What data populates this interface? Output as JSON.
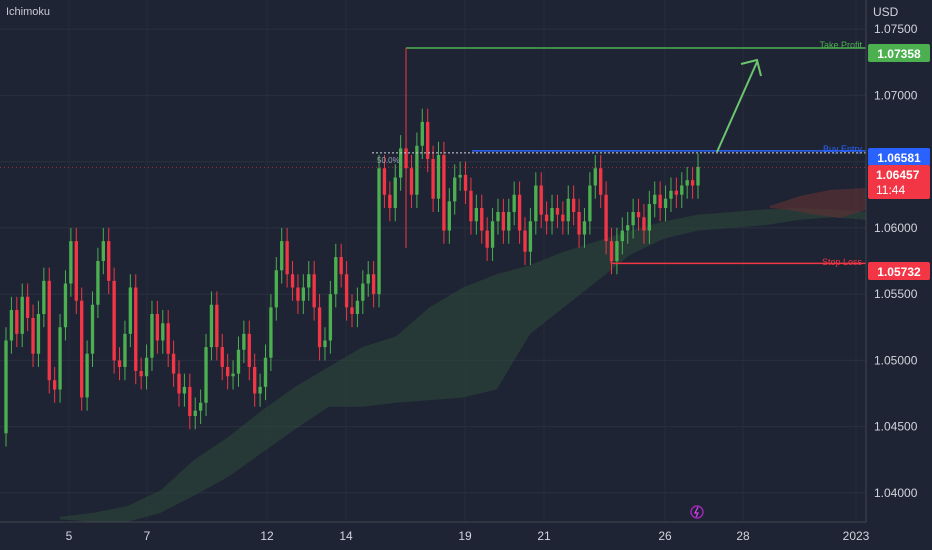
{
  "indicator_name": "Ichimoku",
  "currency": "USD",
  "colors": {
    "background": "#1e2433",
    "up_candle": "#4caf50",
    "down_candle": "#f23645",
    "take_profit": "#4caf50",
    "buy_line": "#2962ff",
    "stop_loss": "#f23645",
    "current_price": "#f23645",
    "cloud_bull": "#2e4a3a",
    "cloud_bear": "#5a3035"
  },
  "levels": {
    "take_profit": {
      "label": "Take Profit",
      "value": "1.07358"
    },
    "buy_entry": {
      "label": "Buy Entry",
      "value": "1.06581"
    },
    "stop_loss": {
      "label": "Stop Loss",
      "value": "1.05732"
    },
    "current": {
      "value": "1.06457",
      "countdown": "11:44"
    },
    "fib_label": "50.0%"
  },
  "chart_data": {
    "type": "candlestick",
    "y_axis": {
      "unit": "USD",
      "ticks": [
        "1.07500",
        "1.07000",
        "1.06500",
        "1.06000",
        "1.05500",
        "1.05000",
        "1.04500",
        "1.04000"
      ],
      "range": [
        1.0378,
        1.0772
      ]
    },
    "x_axis": {
      "ticks": [
        "5",
        "7",
        "12",
        "14",
        "19",
        "21",
        "26",
        "28",
        "2023"
      ]
    },
    "candles": [
      [
        1.0445,
        1.0515
      ],
      [
        1.0515,
        1.0538
      ],
      [
        1.0538,
        1.052
      ],
      [
        1.052,
        1.0548
      ],
      [
        1.0548,
        1.0532
      ],
      [
        1.0532,
        1.0505
      ],
      [
        1.0505,
        1.0535
      ],
      [
        1.0535,
        1.056
      ],
      [
        1.056,
        1.0485
      ],
      [
        1.0485,
        1.0478
      ],
      [
        1.0478,
        1.0525
      ],
      [
        1.0525,
        1.0558
      ],
      [
        1.0558,
        1.059
      ],
      [
        1.059,
        1.0545
      ],
      [
        1.0545,
        1.0472
      ],
      [
        1.0472,
        1.0505
      ],
      [
        1.0505,
        1.0542
      ],
      [
        1.0542,
        1.0575
      ],
      [
        1.0575,
        1.059
      ],
      [
        1.059,
        1.056
      ],
      [
        1.056,
        1.05
      ],
      [
        1.05,
        1.0495
      ],
      [
        1.0495,
        1.052
      ],
      [
        1.052,
        1.0555
      ],
      [
        1.0555,
        1.0492
      ],
      [
        1.0492,
        1.0488
      ],
      [
        1.0488,
        1.0502
      ],
      [
        1.0502,
        1.0535
      ],
      [
        1.0535,
        1.0515
      ],
      [
        1.0515,
        1.0528
      ],
      [
        1.0528,
        1.0505
      ],
      [
        1.0505,
        1.049
      ],
      [
        1.049,
        1.0475
      ],
      [
        1.0475,
        1.048
      ],
      [
        1.048,
        1.0458
      ],
      [
        1.0458,
        1.0462
      ],
      [
        1.0462,
        1.0468
      ],
      [
        1.0468,
        1.051
      ],
      [
        1.051,
        1.0542
      ],
      [
        1.0542,
        1.051
      ],
      [
        1.051,
        1.0495
      ],
      [
        1.0495,
        1.0488
      ],
      [
        1.0488,
        1.049
      ],
      [
        1.049,
        1.0508
      ],
      [
        1.0508,
        1.052
      ],
      [
        1.052,
        1.0495
      ],
      [
        1.0495,
        1.0475
      ],
      [
        1.0475,
        1.048
      ],
      [
        1.048,
        1.0502
      ],
      [
        1.0502,
        1.054
      ],
      [
        1.054,
        1.0568
      ],
      [
        1.0568,
        1.059
      ],
      [
        1.059,
        1.0565
      ],
      [
        1.0565,
        1.0555
      ],
      [
        1.0555,
        1.0545
      ],
      [
        1.0545,
        1.0555
      ],
      [
        1.0555,
        1.0565
      ],
      [
        1.0565,
        1.054
      ],
      [
        1.054,
        1.051
      ],
      [
        1.051,
        1.0515
      ],
      [
        1.0515,
        1.055
      ],
      [
        1.055,
        1.0578
      ],
      [
        1.0578,
        1.0565
      ],
      [
        1.0565,
        1.054
      ],
      [
        1.054,
        1.0535
      ],
      [
        1.0535,
        1.0545
      ],
      [
        1.0545,
        1.0558
      ],
      [
        1.0558,
        1.0565
      ],
      [
        1.0565,
        1.055
      ],
      [
        1.055,
        1.0645
      ],
      [
        1.0645,
        1.0625
      ],
      [
        1.0625,
        1.0615
      ],
      [
        1.0615,
        1.0638
      ],
      [
        1.0638,
        1.066
      ],
      [
        1.066,
        1.0645
      ],
      [
        1.0645,
        1.0625
      ],
      [
        1.0625,
        1.0662
      ],
      [
        1.0662,
        1.068
      ],
      [
        1.068,
        1.0652
      ],
      [
        1.0652,
        1.0622
      ],
      [
        1.0622,
        1.0655
      ],
      [
        1.0655,
        1.0598
      ],
      [
        1.0598,
        1.062
      ],
      [
        1.062,
        1.0638
      ],
      [
        1.0638,
        1.064
      ],
      [
        1.064,
        1.0628
      ],
      [
        1.0628,
        1.0605
      ],
      [
        1.0605,
        1.0615
      ],
      [
        1.0615,
        1.0598
      ],
      [
        1.0598,
        1.0585
      ],
      [
        1.0585,
        1.0605
      ],
      [
        1.0605,
        1.0612
      ],
      [
        1.0612,
        1.0598
      ],
      [
        1.0598,
        1.0612
      ],
      [
        1.0612,
        1.0625
      ],
      [
        1.0625,
        1.0598
      ],
      [
        1.0598,
        1.0582
      ],
      [
        1.0582,
        1.0605
      ],
      [
        1.0605,
        1.0632
      ],
      [
        1.0632,
        1.061
      ],
      [
        1.061,
        1.0605
      ],
      [
        1.0605,
        1.0615
      ],
      [
        1.0615,
        1.061
      ],
      [
        1.061,
        1.0605
      ],
      [
        1.0605,
        1.0622
      ],
      [
        1.0622,
        1.0612
      ],
      [
        1.0612,
        1.0595
      ],
      [
        1.0595,
        1.0605
      ],
      [
        1.0605,
        1.0632
      ],
      [
        1.0632,
        1.0645
      ],
      [
        1.0645,
        1.0625
      ],
      [
        1.0625,
        1.059
      ],
      [
        1.059,
        1.0575
      ],
      [
        1.0575,
        1.059
      ],
      [
        1.059,
        1.0598
      ],
      [
        1.0598,
        1.0602
      ],
      [
        1.0602,
        1.0612
      ],
      [
        1.0612,
        1.0608
      ],
      [
        1.0608,
        1.0598
      ],
      [
        1.0598,
        1.0618
      ],
      [
        1.0618,
        1.0625
      ],
      [
        1.0625,
        1.0615
      ],
      [
        1.0615,
        1.0622
      ],
      [
        1.0622,
        1.0628
      ],
      [
        1.0628,
        1.0625
      ],
      [
        1.0625,
        1.0632
      ],
      [
        1.0632,
        1.0636
      ],
      [
        1.0636,
        1.0632
      ],
      [
        1.0632,
        1.0646
      ]
    ],
    "ichimoku_cloud": {
      "upper": [
        1.0382,
        1.0385,
        1.039,
        1.0402,
        1.0425,
        1.0442,
        1.0462,
        1.048,
        1.0495,
        1.051,
        1.0518,
        1.054,
        1.0555,
        1.0565,
        1.0572,
        1.0582,
        1.059,
        1.0598,
        1.0605,
        1.061,
        1.0612,
        1.0614,
        1.0615,
        1.0614,
        1.0612
      ],
      "lower": [
        1.038,
        1.0378,
        1.0378,
        1.0385,
        1.0398,
        1.0412,
        1.043,
        1.0448,
        1.0465,
        1.0465,
        1.0468,
        1.047,
        1.0472,
        1.0478,
        1.052,
        1.054,
        1.056,
        1.058,
        1.0592,
        1.0598,
        1.06,
        1.0602,
        1.0606,
        1.0608,
        1.0606
      ]
    }
  }
}
